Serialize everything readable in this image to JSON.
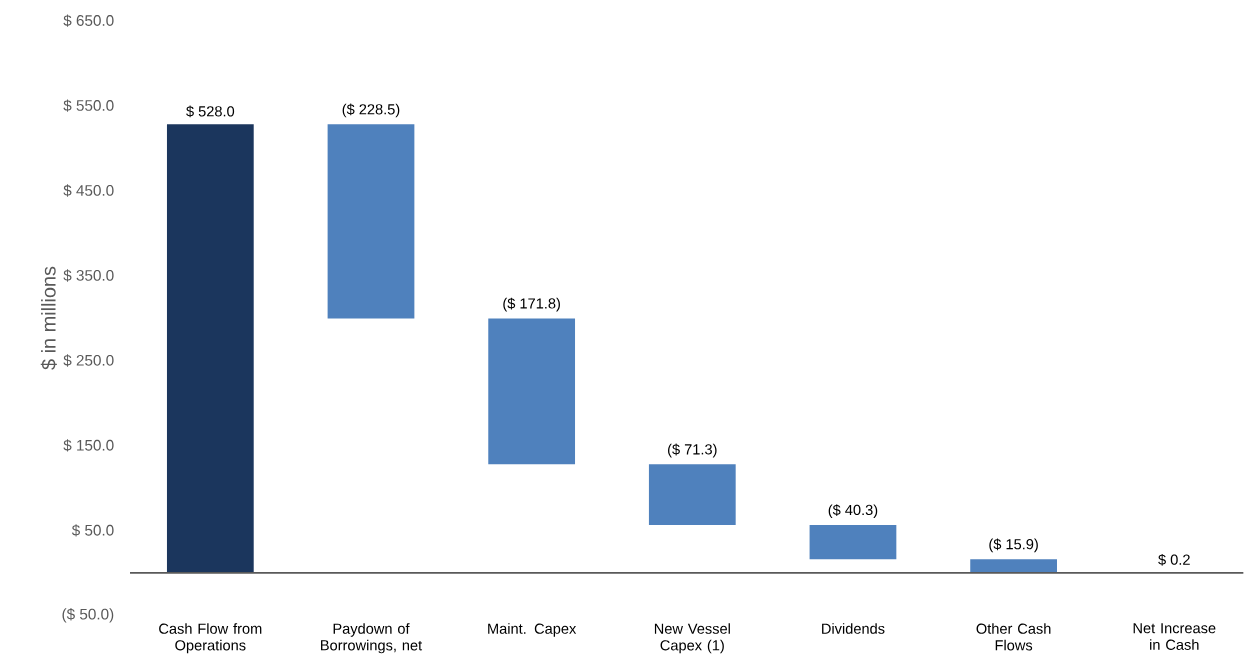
{
  "chart_data": {
    "type": "bar",
    "ylabel": "$ in millions",
    "categories": [
      "Cash Flow from Operations",
      "Paydown of Borrowings, net",
      "Maint. Capex",
      "New Vessel Capex (1)",
      "Dividends",
      "Other Cash Flows",
      "Net Increase in Cash"
    ],
    "values": [
      528.0,
      -228.5,
      -171.8,
      -71.3,
      -40.3,
      -15.9,
      0.2
    ],
    "base": [
      0,
      528.0,
      299.5,
      127.7,
      56.4,
      16.1,
      0
    ],
    "colors": [
      "#1b365d",
      "#4f81bd",
      "#4f81bd",
      "#4f81bd",
      "#4f81bd",
      "#4f81bd",
      "#1b365d"
    ],
    "value_labels": [
      "$ 528.0",
      "($ 228.5)",
      "($ 171.8)",
      "($ 71.3)",
      "($ 40.3)",
      "($ 15.9)",
      "$ 0.2"
    ],
    "ylim": [
      -50,
      650
    ],
    "yticks": [
      {
        "value": -50,
        "label": "($ 50.0)"
      },
      {
        "value": 50,
        "label": "$ 50.0"
      },
      {
        "value": 150,
        "label": "$ 150.0"
      },
      {
        "value": 250,
        "label": "$ 250.0"
      },
      {
        "value": 350,
        "label": "$ 350.0"
      },
      {
        "value": 450,
        "label": "$ 450.0"
      },
      {
        "value": 550,
        "label": "$ 550.0"
      },
      {
        "value": 650,
        "label": "$ 650.0"
      }
    ],
    "grid": false
  }
}
